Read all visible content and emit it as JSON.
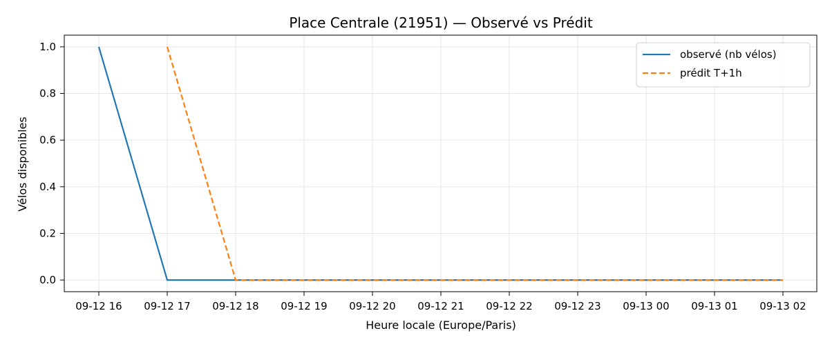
{
  "chart_data": {
    "type": "line",
    "title": "Place Centrale (21951) — Observé vs Prédit",
    "xlabel": "Heure locale (Europe/Paris)",
    "ylabel": "Vélos disponibles",
    "x": [
      "09-12 16",
      "09-12 17",
      "09-12 18",
      "09-12 19",
      "09-12 20",
      "09-12 21",
      "09-12 22",
      "09-12 23",
      "09-13 00",
      "09-13 01",
      "09-13 02"
    ],
    "yticks": [
      "0.0",
      "0.2",
      "0.4",
      "0.6",
      "0.8",
      "1.0"
    ],
    "ylim": [
      -0.05,
      1.05
    ],
    "grid": true,
    "legend_position": "top-right",
    "series": [
      {
        "name": "observé (nb vélos)",
        "color": "#1f77b4",
        "style": "solid",
        "values": [
          1,
          0,
          0,
          0,
          0,
          0,
          0,
          0,
          0,
          0,
          0
        ]
      },
      {
        "name": "prédit T+1h",
        "color": "#ff7f0e",
        "style": "dashed",
        "values": [
          null,
          1,
          0,
          0,
          0,
          0,
          0,
          0,
          0,
          0,
          0
        ]
      }
    ]
  }
}
